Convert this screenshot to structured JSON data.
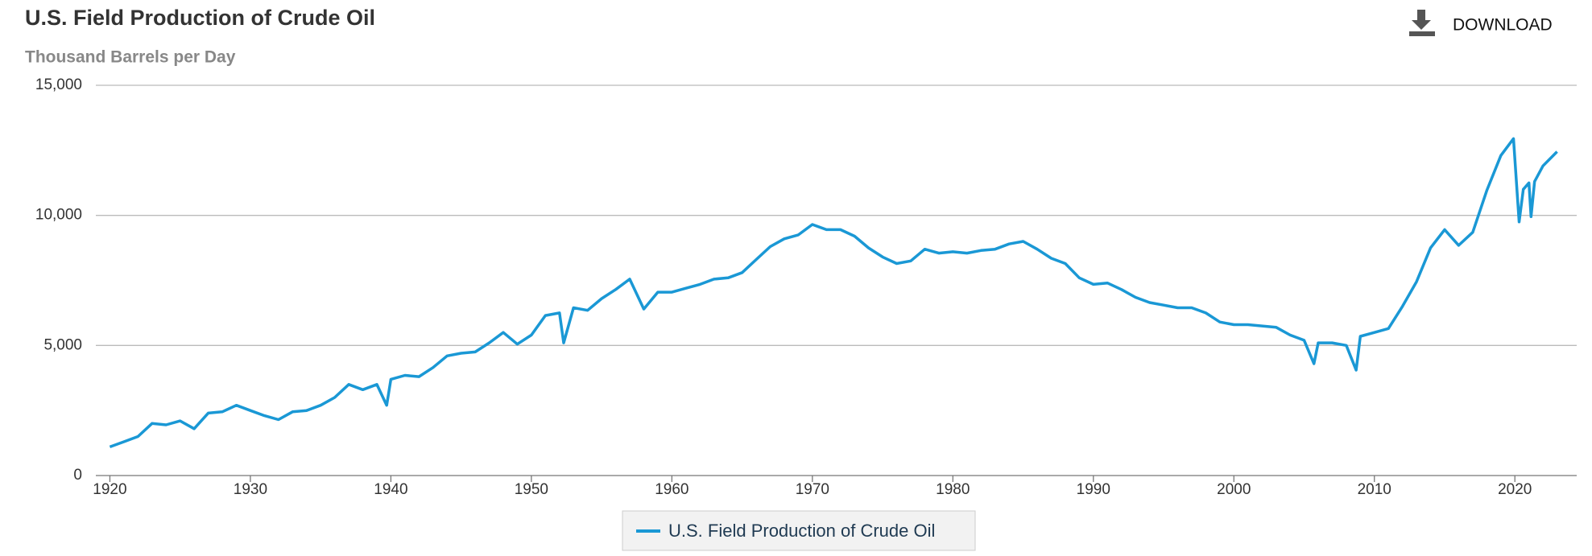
{
  "chart_data": {
    "type": "line",
    "title": "U.S. Field Production of Crude Oil",
    "subtitle": "Thousand Barrels per Day",
    "x": [
      1920,
      1921,
      1922,
      1923,
      1924,
      1925,
      1926,
      1927,
      1928,
      1929,
      1930,
      1931,
      1932,
      1933,
      1934,
      1935,
      1936,
      1937,
      1938,
      1939,
      1939.7,
      1940,
      1941,
      1942,
      1943,
      1944,
      1945,
      1946,
      1947,
      1948,
      1949,
      1950,
      1951,
      1952,
      1952.3,
      1953,
      1954,
      1955,
      1956,
      1957,
      1958,
      1959,
      1960,
      1961,
      1962,
      1963,
      1964,
      1965,
      1966,
      1967,
      1968,
      1969,
      1970,
      1971,
      1972,
      1973,
      1974,
      1975,
      1976,
      1977,
      1978,
      1979,
      1980,
      1981,
      1982,
      1983,
      1984,
      1985,
      1986,
      1987,
      1988,
      1989,
      1990,
      1991,
      1992,
      1993,
      1994,
      1995,
      1996,
      1997,
      1998,
      1999,
      2000,
      2001,
      2002,
      2003,
      2004,
      2005,
      2005.7,
      2006,
      2007,
      2008,
      2008.7,
      2009,
      2010,
      2011,
      2012,
      2013,
      2014,
      2015,
      2016,
      2017,
      2018,
      2019,
      2019.9,
      2020.3,
      2020.6,
      2021,
      2021.15,
      2021.4,
      2022,
      2023
    ],
    "series": [
      {
        "name": "U.S. Field Production of Crude Oil",
        "color": "#1a98d5",
        "values": [
          1100,
          1300,
          1500,
          2000,
          1950,
          2100,
          1800,
          2400,
          2450,
          2700,
          2500,
          2300,
          2150,
          2450,
          2500,
          2700,
          3000,
          3500,
          3300,
          3500,
          2700,
          3700,
          3850,
          3800,
          4150,
          4600,
          4700,
          4750,
          5100,
          5500,
          5050,
          5400,
          6150,
          6250,
          5100,
          6450,
          6350,
          6800,
          7150,
          7550,
          6400,
          7050,
          7050,
          7200,
          7350,
          7550,
          7600,
          7800,
          8300,
          8800,
          9100,
          9250,
          9650,
          9450,
          9450,
          9200,
          8750,
          8400,
          8150,
          8250,
          8700,
          8550,
          8600,
          8550,
          8650,
          8700,
          8900,
          9000,
          8700,
          8350,
          8150,
          7600,
          7350,
          7400,
          7150,
          6850,
          6650,
          6550,
          6450,
          6450,
          6250,
          5900,
          5800,
          5800,
          5750,
          5700,
          5400,
          5200,
          4300,
          5100,
          5100,
          5000,
          4050,
          5350,
          5500,
          5650,
          6500,
          7450,
          8750,
          9450,
          8850,
          9350,
          10950,
          12300,
          12950,
          9750,
          11000,
          11250,
          9950,
          11300,
          11900,
          12450
        ]
      }
    ],
    "xlim": [
      1919,
      2024.4
    ],
    "xticks": [
      1920,
      1930,
      1940,
      1950,
      1960,
      1970,
      1980,
      1990,
      2000,
      2010,
      2020
    ],
    "ylim": [
      0,
      15000
    ],
    "yticks": [
      0,
      {
        "value": 5000,
        "label": "5,000"
      },
      {
        "value": 10000,
        "label": "10,000"
      },
      {
        "value": 15000,
        "label": "15,000"
      }
    ],
    "grid": true
  },
  "toolbar": {
    "download": "DOWNLOAD"
  }
}
